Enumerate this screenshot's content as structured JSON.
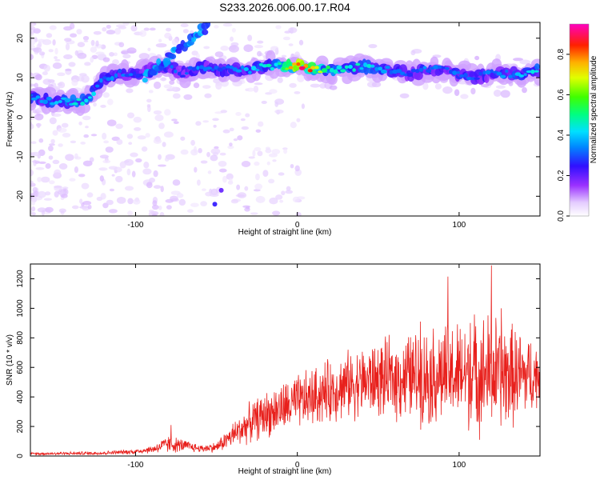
{
  "title": "S233.2026.006.00.17.R04",
  "colors": {
    "snr_line": "#e8201c",
    "axis": "#000000"
  },
  "chart_data": [
    {
      "type": "heatmap",
      "xlabel": "Height of straight line (km)",
      "ylabel": "Frequency (Hz)",
      "xlim": [
        -165,
        150
      ],
      "ylim": [
        -25,
        24
      ],
      "x_ticks": [
        {
          "value": -100,
          "label": "-100"
        },
        {
          "value": 0,
          "label": "0"
        },
        {
          "value": 100,
          "label": "100"
        }
      ],
      "y_ticks": [
        {
          "value": -20,
          "label": "-20"
        },
        {
          "value": -10,
          "label": "-10"
        },
        {
          "value": 0,
          "label": "0"
        },
        {
          "value": 10,
          "label": "10"
        },
        {
          "value": 20,
          "label": "20"
        }
      ],
      "ridge": {
        "x": [
          -165,
          -150,
          -130,
          -120,
          -110,
          -100,
          -90,
          -80,
          -70,
          -60,
          -50,
          -40,
          -30,
          -20,
          -10,
          0,
          10,
          20,
          30,
          40,
          50,
          60,
          70,
          80,
          90,
          100,
          110,
          120,
          130,
          140,
          150
        ],
        "freq": [
          5,
          4,
          4,
          10,
          11,
          11,
          12,
          13,
          11,
          13,
          12,
          12,
          12,
          13,
          13,
          13,
          12,
          12,
          12,
          13,
          12,
          12,
          11,
          12,
          12,
          11,
          10,
          11,
          11,
          11,
          12
        ],
        "peak_amplitude": [
          0.35,
          0.4,
          0.45,
          0.35,
          0.35,
          0.3,
          0.3,
          0.35,
          0.3,
          0.35,
          0.3,
          0.35,
          0.4,
          0.45,
          0.5,
          0.95,
          0.75,
          0.5,
          0.45,
          0.45,
          0.4,
          0.35,
          0.3,
          0.35,
          0.3,
          0.35,
          0.3,
          0.35,
          0.35,
          0.4,
          0.45
        ]
      },
      "colorbar": {
        "label": "Normalized spectral amplitude",
        "range": [
          0,
          0.95
        ],
        "ticks": [
          {
            "value": 0.0,
            "label": "0.0"
          },
          {
            "value": 0.2,
            "label": "0.2"
          },
          {
            "value": 0.4,
            "label": "0.4"
          },
          {
            "value": 0.6,
            "label": "0.6"
          },
          {
            "value": 0.8,
            "label": "0.8"
          }
        ]
      }
    },
    {
      "type": "line",
      "xlabel": "Height of straight line (km)",
      "ylabel": "SNR (10 * v/v)",
      "xlim": [
        -165,
        150
      ],
      "ylim": [
        0,
        1300
      ],
      "x_ticks": [
        {
          "value": -100,
          "label": "-100"
        },
        {
          "value": 0,
          "label": "0"
        },
        {
          "value": 100,
          "label": "100"
        }
      ],
      "y_ticks": [
        {
          "value": 0,
          "label": "0"
        },
        {
          "value": 200,
          "label": "200"
        },
        {
          "value": 400,
          "label": "400"
        },
        {
          "value": 600,
          "label": "600"
        },
        {
          "value": 800,
          "label": "800"
        },
        {
          "value": 1000,
          "label": "1000"
        },
        {
          "value": 1200,
          "label": "1200"
        }
      ],
      "envelope": {
        "x": [
          -165,
          -120,
          -100,
          -90,
          -80,
          -70,
          -60,
          -50,
          -40,
          -30,
          -20,
          -10,
          0,
          10,
          20,
          30,
          40,
          50,
          60,
          70,
          80,
          90,
          100,
          110,
          120,
          130,
          140,
          150
        ],
        "mean": [
          15,
          20,
          30,
          45,
          80,
          70,
          50,
          60,
          140,
          220,
          280,
          320,
          360,
          400,
          440,
          480,
          500,
          520,
          520,
          540,
          540,
          550,
          550,
          560,
          560,
          550,
          540,
          550
        ],
        "spread": [
          10,
          15,
          20,
          30,
          70,
          50,
          30,
          40,
          100,
          150,
          180,
          200,
          220,
          230,
          250,
          260,
          280,
          300,
          320,
          350,
          380,
          400,
          420,
          450,
          480,
          420,
          350,
          250
        ]
      },
      "peaks": [
        {
          "x": 93,
          "y": 1215
        },
        {
          "x": 120,
          "y": 1290
        },
        {
          "x": 126,
          "y": 1000
        },
        {
          "x": 76,
          "y": 910
        },
        {
          "x": 107,
          "y": 900
        },
        {
          "x": -78,
          "y": 210
        }
      ]
    }
  ]
}
